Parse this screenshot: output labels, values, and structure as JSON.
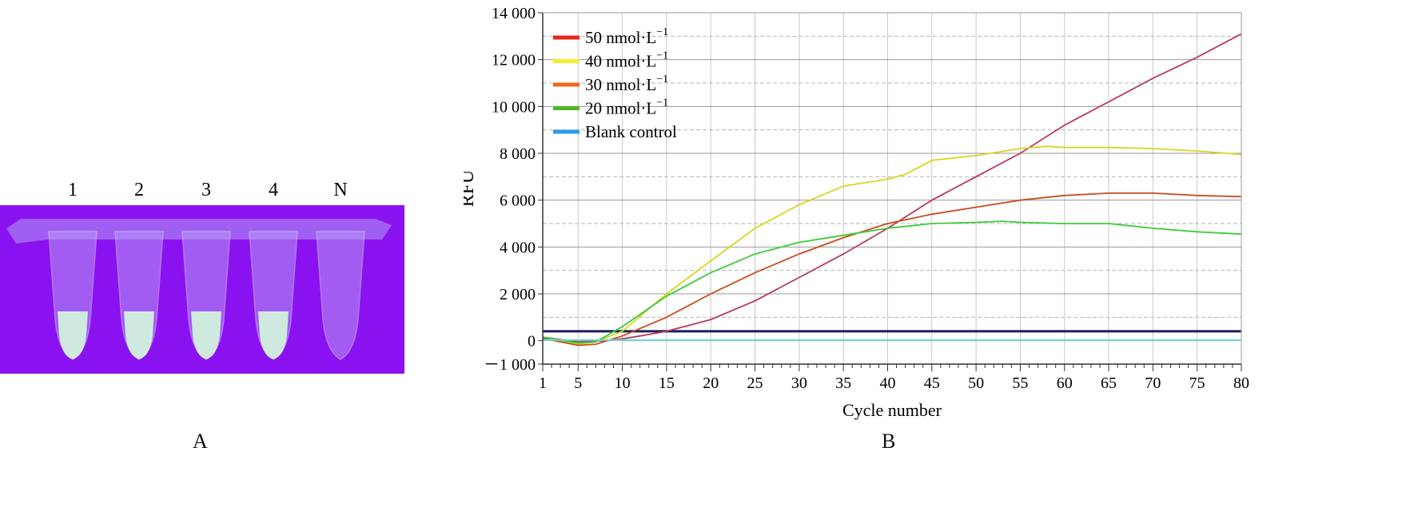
{
  "panel_a": {
    "label": "A",
    "tube_labels": [
      "1",
      "2",
      "3",
      "4",
      "N"
    ],
    "colors": {
      "background": "#8a12f0",
      "positive_fluid": "#cfe9df",
      "tube": "#b79af5"
    }
  },
  "panel_b": {
    "label": "B"
  },
  "chart_data": {
    "type": "line",
    "title": "",
    "xlabel": "Cycle number",
    "ylabel": "RFU",
    "xlim": [
      1,
      80
    ],
    "ylim": [
      -1000,
      14000
    ],
    "x_ticks": [
      1,
      5,
      10,
      15,
      20,
      25,
      30,
      35,
      40,
      45,
      50,
      55,
      60,
      65,
      70,
      75,
      80
    ],
    "y_ticks": [
      -1000,
      0,
      2000,
      4000,
      6000,
      8000,
      10000,
      12000,
      14000
    ],
    "y_tick_labels": [
      "－1 000",
      "0",
      "2 000",
      "4 000",
      "6 000",
      "8 000",
      "10 000",
      "12 000",
      "14 000"
    ],
    "grid": true,
    "legend_position": "top-left",
    "threshold": 400,
    "legend": [
      {
        "text": "50 nmol·L",
        "sup": "−1",
        "color": "#e8261e"
      },
      {
        "text": "40 nmol·L",
        "sup": "−1",
        "color": "#f2ee2a"
      },
      {
        "text": "30 nmol·L",
        "sup": "−1",
        "color": "#ee6a1f"
      },
      {
        "text": "20 nmol·L",
        "sup": "−1",
        "color": "#4db52a"
      },
      {
        "text": "Blank control",
        "sup": "",
        "color": "#2a9be8"
      }
    ],
    "series": [
      {
        "name": "50 nmol·L−1",
        "color": "#b83a5c",
        "x": [
          1,
          5,
          8,
          10,
          12,
          15,
          20,
          25,
          30,
          35,
          40,
          45,
          50,
          55,
          60,
          65,
          70,
          75,
          80
        ],
        "y": [
          150,
          -50,
          0,
          80,
          200,
          400,
          900,
          1700,
          2700,
          3700,
          4800,
          6000,
          7000,
          8000,
          9200,
          10200,
          11200,
          12100,
          13100
        ]
      },
      {
        "name": "40 nmol·L−1",
        "color": "#d8d620",
        "x": [
          1,
          5,
          7,
          10,
          15,
          20,
          25,
          30,
          35,
          40,
          42,
          45,
          50,
          55,
          58,
          60,
          65,
          70,
          75,
          80
        ],
        "y": [
          100,
          -150,
          -50,
          400,
          2000,
          3400,
          4800,
          5800,
          6600,
          6900,
          7100,
          7700,
          7900,
          8200,
          8300,
          8250,
          8250,
          8200,
          8100,
          7950
        ]
      },
      {
        "name": "30 nmol·L−1",
        "color": "#c84c1c",
        "x": [
          1,
          5,
          7,
          10,
          15,
          20,
          25,
          30,
          35,
          40,
          45,
          50,
          55,
          60,
          65,
          70,
          75,
          80
        ],
        "y": [
          100,
          -200,
          -150,
          200,
          1000,
          2000,
          2900,
          3700,
          4400,
          5000,
          5400,
          5700,
          6000,
          6200,
          6300,
          6300,
          6200,
          6150
        ]
      },
      {
        "name": "20 nmol·L−1",
        "color": "#3ccb3a",
        "x": [
          1,
          5,
          7,
          10,
          15,
          20,
          25,
          30,
          35,
          40,
          45,
          50,
          53,
          55,
          60,
          65,
          70,
          75,
          80
        ],
        "y": [
          150,
          -100,
          -50,
          600,
          1900,
          2900,
          3700,
          4200,
          4500,
          4800,
          5000,
          5050,
          5100,
          5050,
          5000,
          5000,
          4800,
          4650,
          4550
        ]
      },
      {
        "name": "Blank control",
        "color": "#66e0e0",
        "x": [
          1,
          80
        ],
        "y": [
          30,
          30
        ]
      }
    ]
  }
}
